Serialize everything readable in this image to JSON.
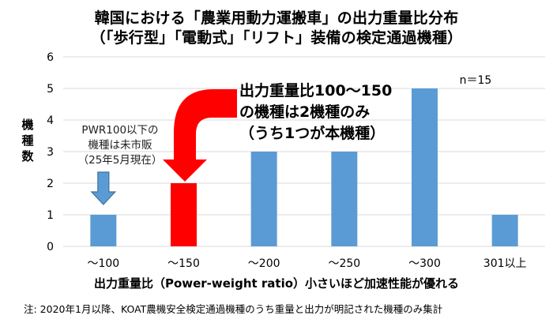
{
  "title_line1": "韓国における「農業用動力運搬車」の出力重量比分布",
  "title_line2": "（「歩行型」「電動式」「リフト」装備の検定通過機種）",
  "footnote": "注: 2020年1月以降、KOAT農機安全検定通過機種のうち重量と出力が明記された機種のみ集計",
  "chart_data": {
    "type": "bar",
    "categories": [
      "～100",
      "～150",
      "～200",
      "～250",
      "～300",
      "301以上"
    ],
    "values": [
      1,
      2,
      3,
      3,
      5,
      1
    ],
    "highlight_index": 1,
    "ylim": [
      0,
      6
    ],
    "yticks": [
      0,
      1,
      2,
      3,
      4,
      5,
      6
    ],
    "ylabel_chars": [
      "機",
      "種",
      "数"
    ],
    "xlabel": "出力重量比（Power-weight ratio）小さいほど加速性能が優れる",
    "n_label": "n＝15",
    "colors": {
      "bar": "#5b9bd5",
      "highlight": "#ff0000",
      "grid": "#d9d9d9"
    },
    "annotations": {
      "callout_lines": [
        "出力重量比100～150",
        "の機種は2機種のみ",
        "（うち1つが本機種）"
      ],
      "small_note_lines": [
        "PWR100以下の",
        "機種は未市販",
        "（25年5月現在）"
      ]
    }
  }
}
